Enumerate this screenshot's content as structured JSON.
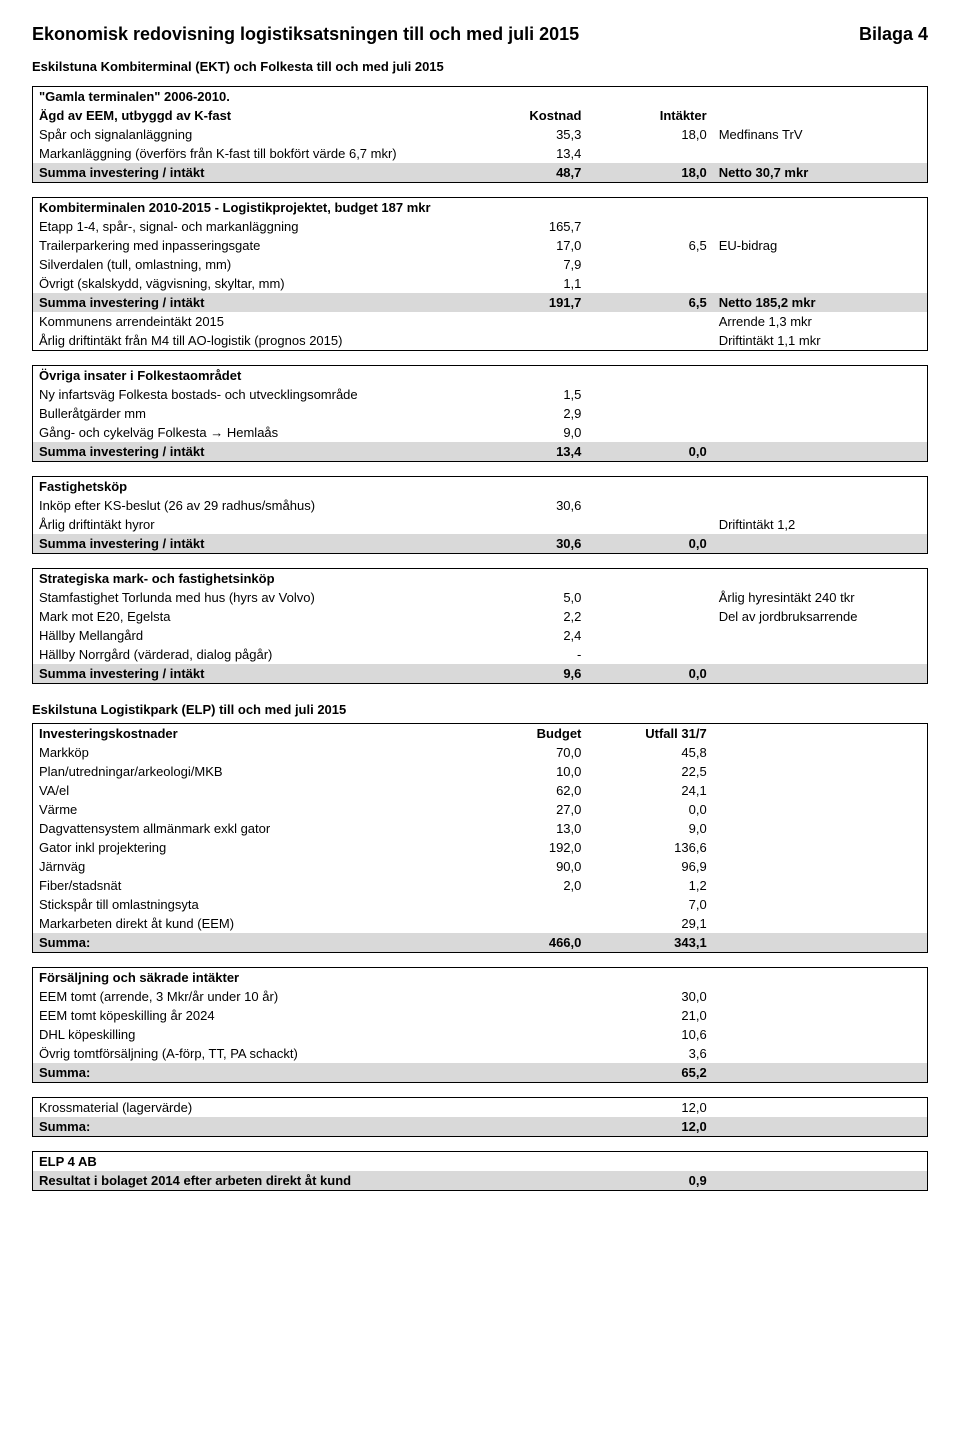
{
  "header": {
    "title": "Ekonomisk redovisning logistiksatsningen till och med juli 2015",
    "bilaga": "Bilaga 4"
  },
  "sub1": "Eskilstuna Kombiterminal (EKT) och Folkesta till och med juli 2015",
  "t1": {
    "h0": "\"Gamla terminalen\" 2006-2010.",
    "h1": "Ägd av EEM, utbyggd av K-fast",
    "col_a": "Kostnad",
    "col_b": "Intäkter",
    "r1": {
      "l": "Spår och signalanläggning",
      "a": "35,3",
      "b": "18,0",
      "c": "Medfinans TrV"
    },
    "r2": {
      "l": "Markanläggning (överförs från K-fast till bokfört värde 6,7 mkr)",
      "a": "13,4"
    },
    "sum": {
      "l": "Summa investering / intäkt",
      "a": "48,7",
      "b": "18,0",
      "c": "Netto 30,7 mkr"
    }
  },
  "t2": {
    "h1": "Kombiterminalen 2010-2015 - Logistikprojektet, budget 187 mkr",
    "r1": {
      "l": "Etapp 1-4, spår-, signal- och markanläggning",
      "a": "165,7"
    },
    "r2": {
      "l": "Trailerparkering med inpasseringsgate",
      "a": "17,0",
      "b": "6,5",
      "c": "EU-bidrag"
    },
    "r3": {
      "l": "Silverdalen (tull, omlastning, mm)",
      "a": "7,9"
    },
    "r4": {
      "l": "Övrigt (skalskydd, vägvisning, skyltar, mm)",
      "a": "1,1"
    },
    "sum": {
      "l": "Summa investering / intäkt",
      "a": "191,7",
      "b": "6,5",
      "c": "Netto 185,2 mkr"
    },
    "r5": {
      "l": "Kommunens arrendeintäkt 2015",
      "c": "Arrende 1,3 mkr"
    },
    "r6": {
      "l": "Årlig driftintäkt från M4 till AO-logistik (prognos 2015)",
      "c": "Driftintäkt 1,1 mkr"
    }
  },
  "t3": {
    "h1": "Övriga insater i Folkestaområdet",
    "r1": {
      "l": "Ny infartsväg Folkesta bostads- och utvecklingsområde",
      "a": "1,5"
    },
    "r2": {
      "l": "Bulleråtgärder mm",
      "a": "2,9"
    },
    "r3": {
      "l": "Gång- och cykelväg Folkesta → Hemlaås",
      "a": "9,0"
    },
    "sum": {
      "l": "Summa investering / intäkt",
      "a": "13,4",
      "b": "0,0"
    }
  },
  "t4": {
    "h1": "Fastighetsköp",
    "r1": {
      "l": "Inköp efter KS-beslut (26 av 29 radhus/småhus)",
      "a": "30,6"
    },
    "r2": {
      "l": "Årlig driftintäkt hyror",
      "c": "Driftintäkt 1,2"
    },
    "sum": {
      "l": "Summa investering / intäkt",
      "a": "30,6",
      "b": "0,0"
    }
  },
  "t5": {
    "h1": "Strategiska mark- och fastighetsinköp",
    "r1": {
      "l": "Stamfastighet Torlunda med hus (hyrs av Volvo)",
      "a": "5,0",
      "c": "Årlig hyresintäkt 240 tkr"
    },
    "r2": {
      "l": "Mark mot E20, Egelsta",
      "a": "2,2",
      "c": "Del av jordbruksarrende"
    },
    "r3": {
      "l": "Hällby Mellangård",
      "a": "2,4"
    },
    "r4": {
      "l": "Hällby Norrgård (värderad, dialog pågår)",
      "a": "-"
    },
    "sum": {
      "l": "Summa investering / intäkt",
      "a": "9,6",
      "b": "0,0"
    }
  },
  "sub2": "Eskilstuna Logistikpark (ELP) till och med juli 2015",
  "t6": {
    "h1": "Investeringskostnader",
    "col_a": "Budget",
    "col_b": "Utfall 31/7",
    "r1": {
      "l": "Markköp",
      "a": "70,0",
      "b": "45,8"
    },
    "r2": {
      "l": "Plan/utredningar/arkeologi/MKB",
      "a": "10,0",
      "b": "22,5"
    },
    "r3": {
      "l": "VA/el",
      "a": "62,0",
      "b": "24,1"
    },
    "r4": {
      "l": "Värme",
      "a": "27,0",
      "b": "0,0"
    },
    "r5": {
      "l": "Dagvattensystem allmänmark exkl gator",
      "a": "13,0",
      "b": "9,0"
    },
    "r6": {
      "l": "Gator inkl projektering",
      "a": "192,0",
      "b": "136,6"
    },
    "r7": {
      "l": "Järnväg",
      "a": "90,0",
      "b": "96,9"
    },
    "r8": {
      "l": "Fiber/stadsnät",
      "a": "2,0",
      "b": "1,2"
    },
    "r9": {
      "l": "Stickspår till omlastningsyta",
      "b": "7,0"
    },
    "r10": {
      "l": "Markarbeten direkt åt kund (EEM)",
      "b": "29,1"
    },
    "sum": {
      "l": "Summa:",
      "a": "466,0",
      "b": "343,1"
    }
  },
  "t7": {
    "h1": "Försäljning och säkrade intäkter",
    "r1": {
      "l": "EEM tomt (arrende, 3 Mkr/år under 10 år)",
      "b": "30,0"
    },
    "r2": {
      "l": "EEM tomt köpeskilling år 2024",
      "b": "21,0"
    },
    "r3": {
      "l": "DHL köpeskilling",
      "b": "10,6"
    },
    "r4": {
      "l": "Övrig tomtförsäljning (A-förp, TT, PA schackt)",
      "b": "3,6"
    },
    "sum": {
      "l": "Summa:",
      "b": "65,2"
    }
  },
  "t8": {
    "r1": {
      "l": "Krossmaterial (lagervärde)",
      "b": "12,0"
    },
    "sum": {
      "l": "Summa:",
      "b": "12,0"
    }
  },
  "t9": {
    "h1": "ELP 4 AB",
    "sum": {
      "l": "Resultat i bolaget 2014 efter arbeten direkt åt kund",
      "b": "0,9"
    }
  }
}
